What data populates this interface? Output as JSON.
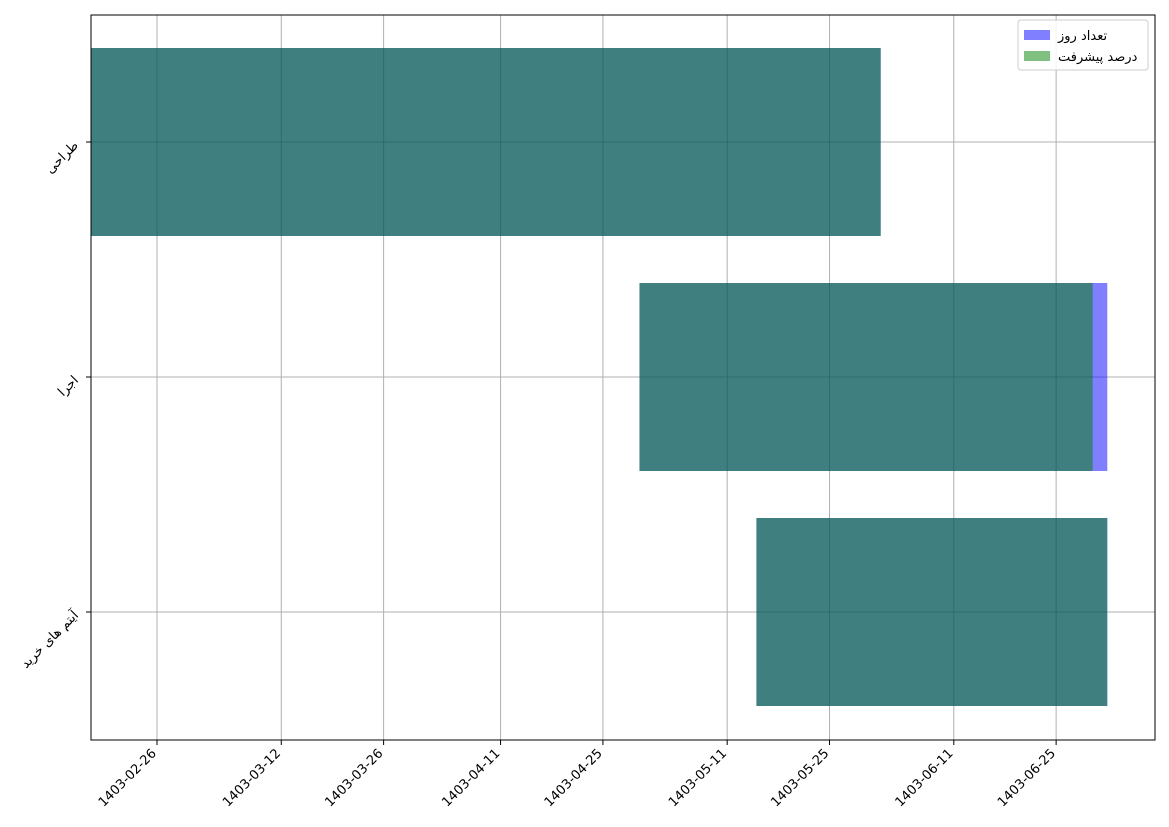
{
  "chart_data": {
    "type": "gantt",
    "title": "",
    "xlabel": "",
    "ylabel": "",
    "grid": true,
    "legend_position": "top-right",
    "legend": [
      {
        "label": "تعداد روز",
        "color": "#0000ff",
        "opacity": 0.5
      },
      {
        "label": "درصد پیشرفت",
        "color": "#008000",
        "opacity": 0.5
      }
    ],
    "x_ticks": [
      "1403-02-26",
      "1403-03-12",
      "1403-03-26",
      "1403-04-11",
      "1403-04-25",
      "1403-05-11",
      "1403-05-25",
      "1403-06-11",
      "1403-06-25"
    ],
    "categories": [
      "طراحی",
      "اجرا",
      "آیتم های خرید"
    ],
    "series": [
      {
        "name": "تعداد روز",
        "color": "#0000ff",
        "opacity": 0.5,
        "bars": [
          {
            "task": "طراحی",
            "start": "1403-02-17",
            "end": "1403-06-01"
          },
          {
            "task": "اجرا",
            "start": "1403-04-30",
            "end": "1403-07-01"
          },
          {
            "task": "آیتم های خرید",
            "start": "1403-05-15",
            "end": "1403-07-01"
          }
        ]
      },
      {
        "name": "درصد پیشرفت",
        "color": "#008000",
        "opacity": 0.5,
        "bars": [
          {
            "task": "طراحی",
            "start": "1403-02-17",
            "end": "1403-06-01"
          },
          {
            "task": "اجرا",
            "start": "1403-04-30",
            "end": "1403-06-30"
          },
          {
            "task": "آیتم های خرید",
            "start": "1403-05-15",
            "end": "1403-07-01"
          }
        ]
      }
    ]
  }
}
